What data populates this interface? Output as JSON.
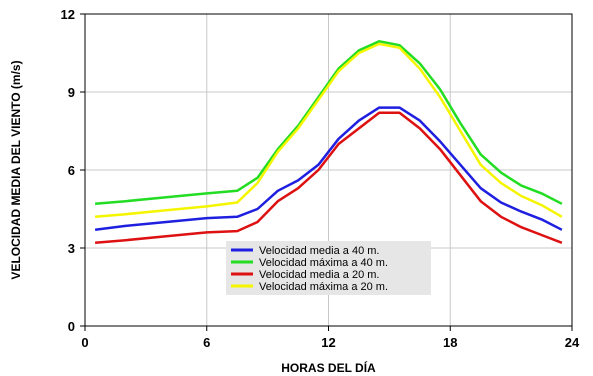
{
  "chart_data": {
    "type": "line",
    "xlabel": "HORAS DEL DÍA",
    "ylabel": "VELOCIDAD MEDIA DEL VIENTO (m/s)",
    "xlim": [
      0,
      24
    ],
    "ylim": [
      0,
      12
    ],
    "x_ticks": [
      0,
      6,
      12,
      18,
      24
    ],
    "y_ticks": [
      0,
      3,
      6,
      9,
      12
    ],
    "grid": true,
    "legend_position": "bottom-center",
    "series": [
      {
        "name": "Velocidad media a 40 m.",
        "color": "#1f1fe0",
        "x": [
          0.5,
          2,
          4,
          6,
          7.5,
          8.5,
          9.5,
          10.5,
          11.5,
          12.5,
          13.5,
          14.5,
          15.5,
          16.5,
          17.5,
          18.5,
          19.5,
          20.5,
          21.5,
          22.5,
          23.5
        ],
        "y": [
          3.7,
          3.85,
          4.0,
          4.15,
          4.2,
          4.5,
          5.2,
          5.6,
          6.2,
          7.2,
          7.9,
          8.4,
          8.4,
          7.9,
          7.1,
          6.2,
          5.3,
          4.75,
          4.4,
          4.1,
          3.7
        ]
      },
      {
        "name": "Velocidad máxima a 40 m.",
        "color": "#22dd22",
        "x": [
          0.5,
          2,
          4,
          6,
          7.5,
          8.5,
          9.5,
          10.5,
          11.5,
          12.5,
          13.5,
          14.5,
          15.5,
          16.5,
          17.5,
          18.5,
          19.5,
          20.5,
          21.5,
          22.5,
          23.5
        ],
        "y": [
          4.7,
          4.8,
          4.95,
          5.1,
          5.2,
          5.7,
          6.8,
          7.7,
          8.8,
          9.9,
          10.6,
          10.95,
          10.8,
          10.1,
          9.1,
          7.8,
          6.6,
          5.9,
          5.4,
          5.1,
          4.7
        ]
      },
      {
        "name": "Velocidad media a 20 m.",
        "color": "#dd1111",
        "x": [
          0.5,
          2,
          4,
          6,
          7.5,
          8.5,
          9.5,
          10.5,
          11.5,
          12.5,
          13.5,
          14.5,
          15.5,
          16.5,
          17.5,
          18.5,
          19.5,
          20.5,
          21.5,
          22.5,
          23.5
        ],
        "y": [
          3.2,
          3.3,
          3.45,
          3.6,
          3.65,
          4.0,
          4.8,
          5.3,
          6.0,
          7.0,
          7.6,
          8.2,
          8.2,
          7.6,
          6.8,
          5.8,
          4.8,
          4.2,
          3.8,
          3.5,
          3.2
        ]
      },
      {
        "name": "Velocidad máxima a 20 m.",
        "color": "#f5f500",
        "x": [
          0.5,
          2,
          4,
          6,
          7.5,
          8.5,
          9.5,
          10.5,
          11.5,
          12.5,
          13.5,
          14.5,
          15.5,
          16.5,
          17.5,
          18.5,
          19.5,
          20.5,
          21.5,
          22.5,
          23.5
        ],
        "y": [
          4.2,
          4.3,
          4.45,
          4.6,
          4.75,
          5.5,
          6.7,
          7.6,
          8.7,
          9.8,
          10.5,
          10.85,
          10.7,
          9.9,
          8.8,
          7.5,
          6.2,
          5.5,
          5.0,
          4.65,
          4.2
        ]
      }
    ]
  }
}
